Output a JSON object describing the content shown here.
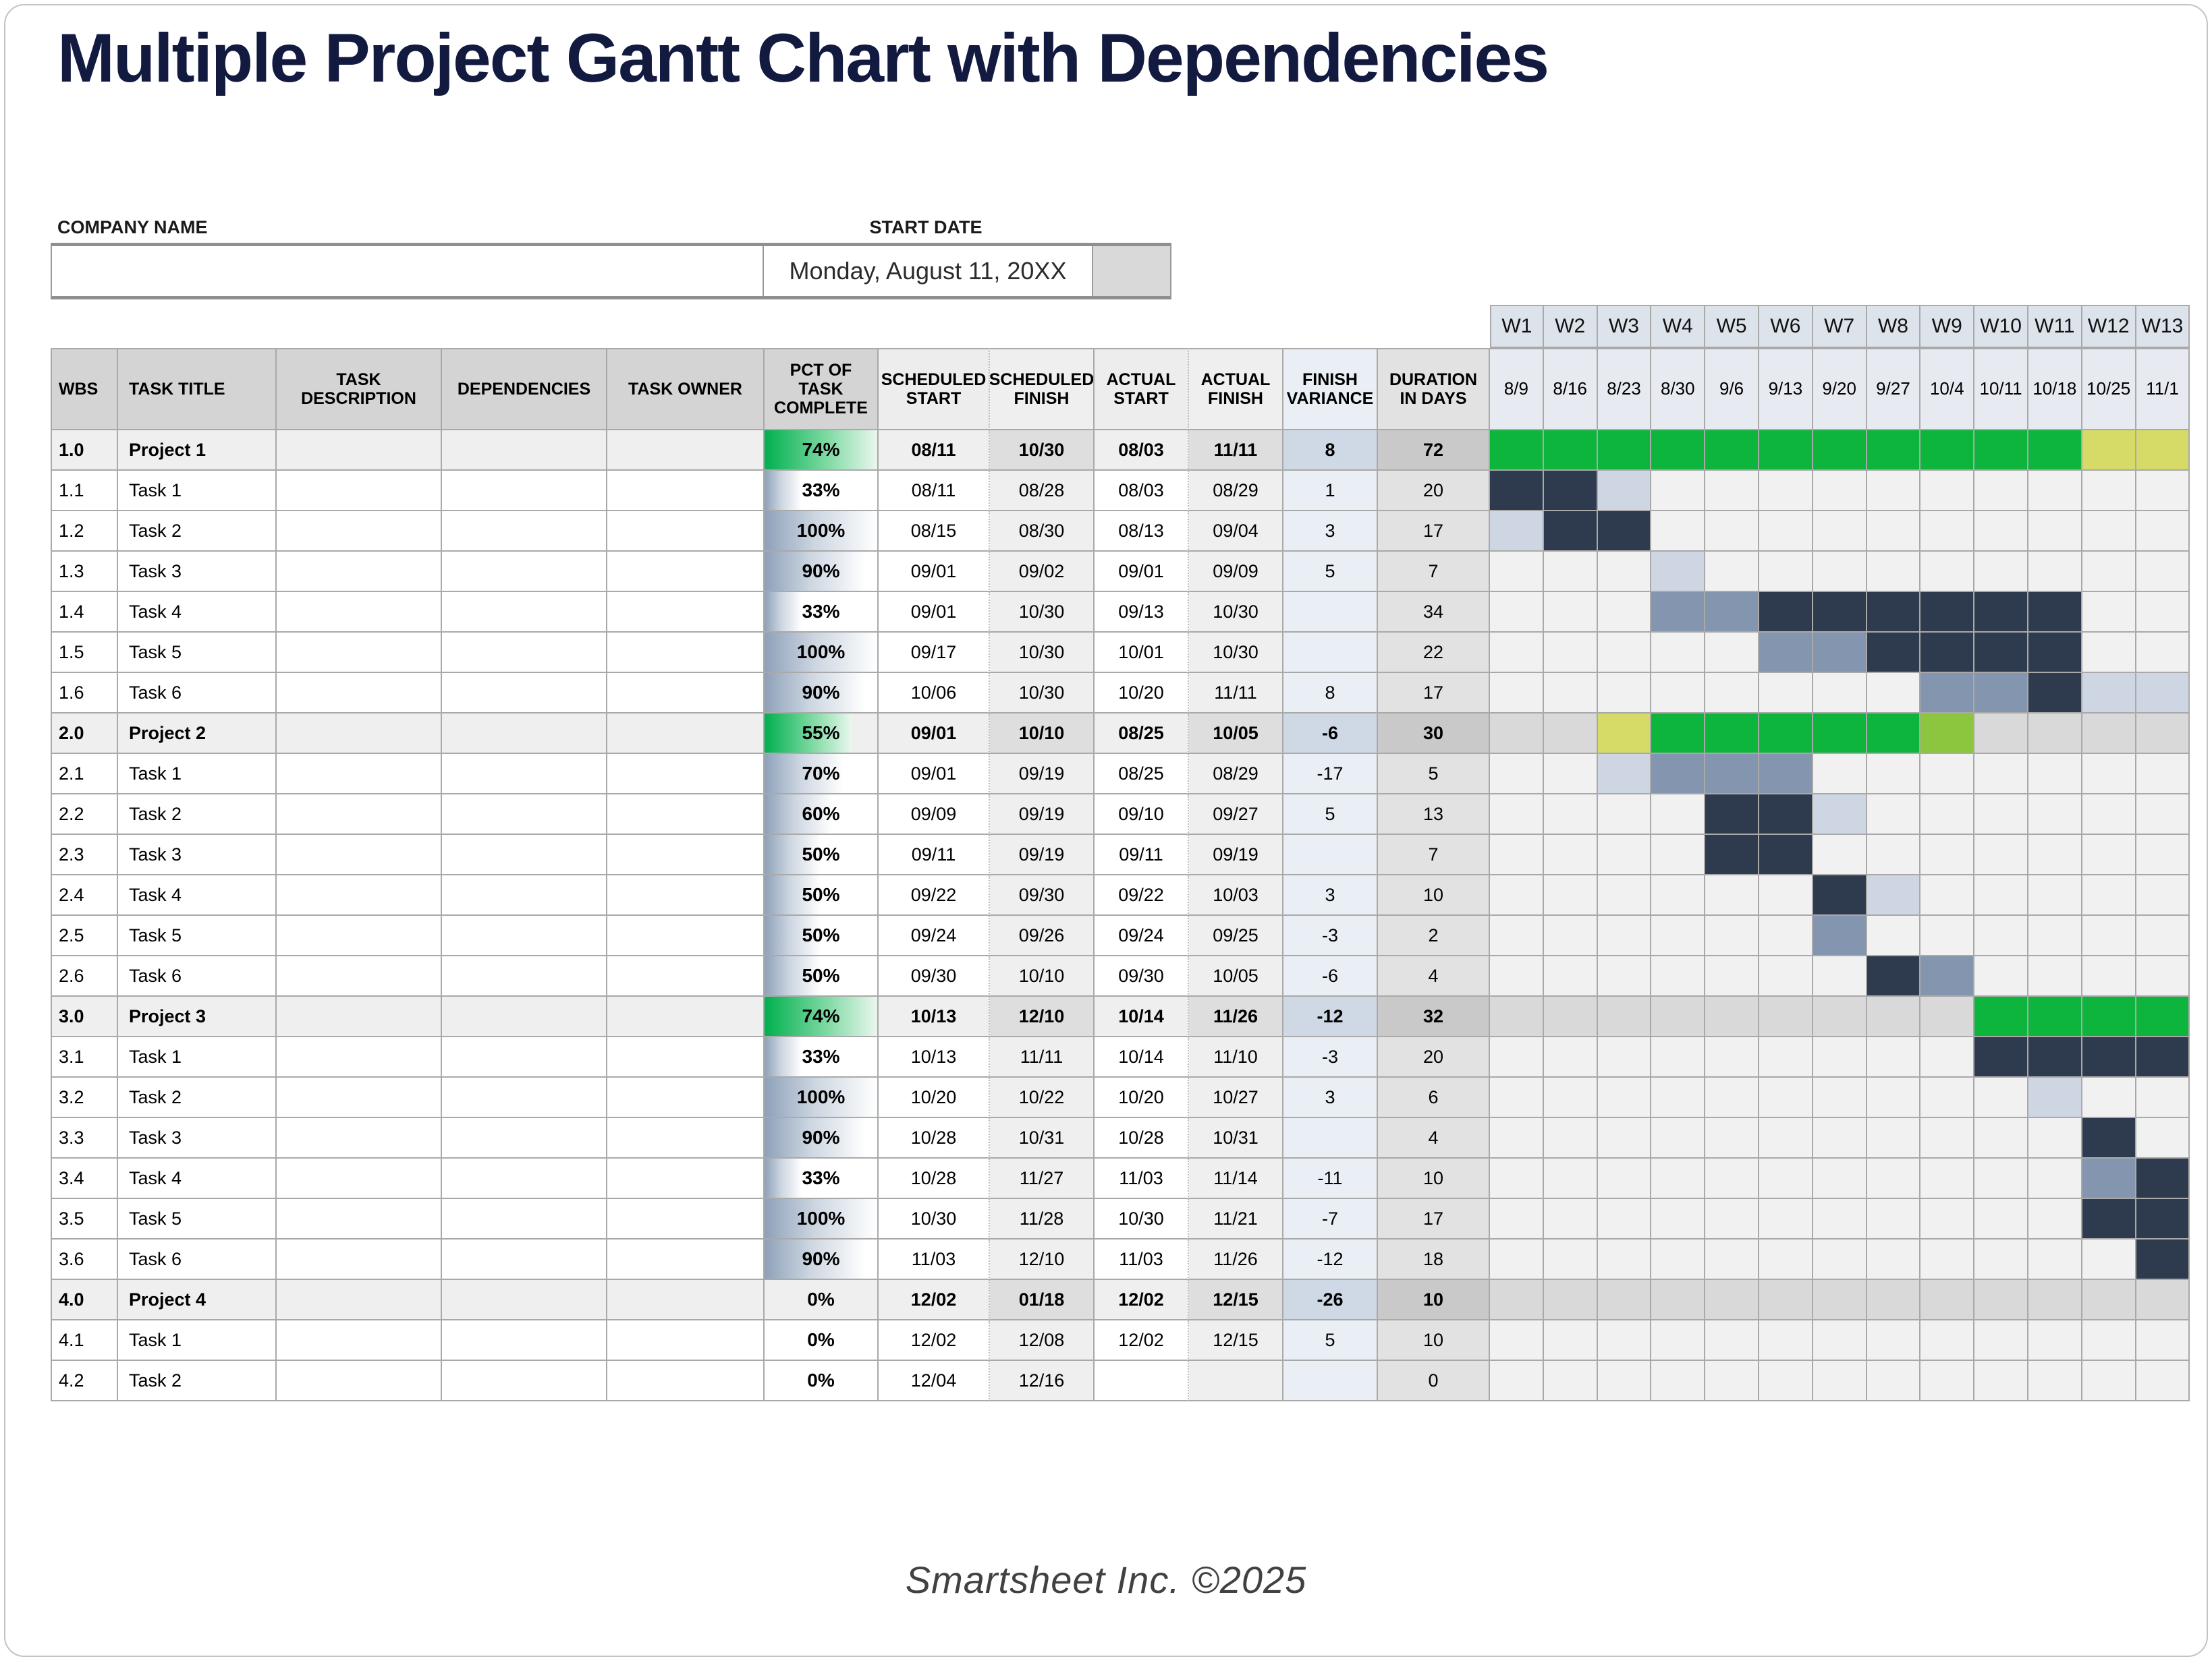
{
  "header": {
    "title": "Multiple Project Gantt Chart with Dependencies"
  },
  "form": {
    "company_label": "COMPANY NAME",
    "company_value": "",
    "start_date_label": "START DATE",
    "start_date_value": "Monday, August 11, 20XX"
  },
  "chart_data": {
    "type": "gantt",
    "title": "Multiple Project Gantt Chart with Dependencies",
    "columns": [
      "WBS",
      "TASK TITLE",
      "TASK DESCRIPTION",
      "DEPENDENCIES",
      "TASK OWNER",
      "PCT OF TASK COMPLETE",
      "SCHEDULED START",
      "SCHEDULED FINISH",
      "ACTUAL START",
      "ACTUAL FINISH",
      "FINISH VARIANCE",
      "DURATION IN DAYS"
    ],
    "weeks": [
      "W1",
      "W2",
      "W3",
      "W4",
      "W5",
      "W6",
      "W7",
      "W8",
      "W9",
      "W10",
      "W11",
      "W12",
      "W13"
    ],
    "week_dates": [
      "8/9",
      "8/16",
      "8/23",
      "8/30",
      "9/6",
      "9/13",
      "9/20",
      "9/27",
      "10/4",
      "10/11",
      "10/18",
      "10/25",
      "11/1"
    ],
    "legend": {
      "G": "project-scheduled-green",
      "LG": "project-partial-lightgreen",
      "Y": "project-overrun-yellow",
      "D": "task-actual-dark",
      "M": "task-mid-blue",
      "L": "task-light-blue",
      "X": "project-row-gray",
      "": "empty"
    },
    "rows": [
      {
        "wbs": "1.0",
        "title": "Project 1",
        "type": "project",
        "description": "",
        "dependencies": "",
        "owner": "",
        "pct": 74,
        "pct_label": "74%",
        "sched_start": "08/11",
        "sched_finish": "10/30",
        "actual_start": "08/03",
        "actual_finish": "11/11",
        "variance": "8",
        "duration": "72",
        "gantt": [
          "G",
          "G",
          "G",
          "G",
          "G",
          "G",
          "G",
          "G",
          "G",
          "G",
          "G",
          "Y",
          "Y"
        ]
      },
      {
        "wbs": "1.1",
        "title": "Task 1",
        "type": "task",
        "description": "",
        "dependencies": "",
        "owner": "",
        "pct": 33,
        "pct_label": "33%",
        "sched_start": "08/11",
        "sched_finish": "08/28",
        "actual_start": "08/03",
        "actual_finish": "08/29",
        "variance": "1",
        "duration": "20",
        "gantt": [
          "D",
          "D",
          "L",
          "",
          "",
          "",
          "",
          "",
          "",
          "",
          "",
          "",
          ""
        ]
      },
      {
        "wbs": "1.2",
        "title": "Task 2",
        "type": "task",
        "description": "",
        "dependencies": "",
        "owner": "",
        "pct": 100,
        "pct_label": "100%",
        "sched_start": "08/15",
        "sched_finish": "08/30",
        "actual_start": "08/13",
        "actual_finish": "09/04",
        "variance": "3",
        "duration": "17",
        "gantt": [
          "L",
          "D",
          "D",
          "",
          "",
          "",
          "",
          "",
          "",
          "",
          "",
          "",
          ""
        ]
      },
      {
        "wbs": "1.3",
        "title": "Task 3",
        "type": "task",
        "description": "",
        "dependencies": "",
        "owner": "",
        "pct": 90,
        "pct_label": "90%",
        "sched_start": "09/01",
        "sched_finish": "09/02",
        "actual_start": "09/01",
        "actual_finish": "09/09",
        "variance": "5",
        "duration": "7",
        "gantt": [
          "",
          "",
          "",
          "L",
          "",
          "",
          "",
          "",
          "",
          "",
          "",
          "",
          ""
        ]
      },
      {
        "wbs": "1.4",
        "title": "Task 4",
        "type": "task",
        "description": "",
        "dependencies": "",
        "owner": "",
        "pct": 33,
        "pct_label": "33%",
        "sched_start": "09/01",
        "sched_finish": "10/30",
        "actual_start": "09/13",
        "actual_finish": "10/30",
        "variance": "",
        "duration": "34",
        "gantt": [
          "",
          "",
          "",
          "M",
          "M",
          "D",
          "D",
          "D",
          "D",
          "D",
          "D",
          "",
          ""
        ]
      },
      {
        "wbs": "1.5",
        "title": "Task 5",
        "type": "task",
        "description": "",
        "dependencies": "",
        "owner": "",
        "pct": 100,
        "pct_label": "100%",
        "sched_start": "09/17",
        "sched_finish": "10/30",
        "actual_start": "10/01",
        "actual_finish": "10/30",
        "variance": "",
        "duration": "22",
        "gantt": [
          "",
          "",
          "",
          "",
          "",
          "M",
          "M",
          "D",
          "D",
          "D",
          "D",
          "",
          ""
        ]
      },
      {
        "wbs": "1.6",
        "title": "Task 6",
        "type": "task",
        "description": "",
        "dependencies": "",
        "owner": "",
        "pct": 90,
        "pct_label": "90%",
        "sched_start": "10/06",
        "sched_finish": "10/30",
        "actual_start": "10/20",
        "actual_finish": "11/11",
        "variance": "8",
        "duration": "17",
        "gantt": [
          "",
          "",
          "",
          "",
          "",
          "",
          "",
          "",
          "M",
          "M",
          "D",
          "L",
          "L"
        ]
      },
      {
        "wbs": "2.0",
        "title": "Project 2",
        "type": "project",
        "description": "",
        "dependencies": "",
        "owner": "",
        "pct": 55,
        "pct_label": "55%",
        "sched_start": "09/01",
        "sched_finish": "10/10",
        "actual_start": "08/25",
        "actual_finish": "10/05",
        "variance": "-6",
        "duration": "30",
        "gantt": [
          "X",
          "X",
          "Y",
          "G",
          "G",
          "G",
          "G",
          "G",
          "LG",
          "X",
          "X",
          "X",
          "X"
        ]
      },
      {
        "wbs": "2.1",
        "title": "Task 1",
        "type": "task",
        "description": "",
        "dependencies": "",
        "owner": "",
        "pct": 70,
        "pct_label": "70%",
        "sched_start": "09/01",
        "sched_finish": "09/19",
        "actual_start": "08/25",
        "actual_finish": "08/29",
        "variance": "-17",
        "duration": "5",
        "gantt": [
          "",
          "",
          "L",
          "M",
          "M",
          "M",
          "",
          "",
          "",
          "",
          "",
          "",
          ""
        ]
      },
      {
        "wbs": "2.2",
        "title": "Task 2",
        "type": "task",
        "description": "",
        "dependencies": "",
        "owner": "",
        "pct": 60,
        "pct_label": "60%",
        "sched_start": "09/09",
        "sched_finish": "09/19",
        "actual_start": "09/10",
        "actual_finish": "09/27",
        "variance": "5",
        "duration": "13",
        "gantt": [
          "",
          "",
          "",
          "",
          "D",
          "D",
          "L",
          "",
          "",
          "",
          "",
          "",
          ""
        ]
      },
      {
        "wbs": "2.3",
        "title": "Task 3",
        "type": "task",
        "description": "",
        "dependencies": "",
        "owner": "",
        "pct": 50,
        "pct_label": "50%",
        "sched_start": "09/11",
        "sched_finish": "09/19",
        "actual_start": "09/11",
        "actual_finish": "09/19",
        "variance": "",
        "duration": "7",
        "gantt": [
          "",
          "",
          "",
          "",
          "D",
          "D",
          "",
          "",
          "",
          "",
          "",
          "",
          ""
        ]
      },
      {
        "wbs": "2.4",
        "title": "Task 4",
        "type": "task",
        "description": "",
        "dependencies": "",
        "owner": "",
        "pct": 50,
        "pct_label": "50%",
        "sched_start": "09/22",
        "sched_finish": "09/30",
        "actual_start": "09/22",
        "actual_finish": "10/03",
        "variance": "3",
        "duration": "10",
        "gantt": [
          "",
          "",
          "",
          "",
          "",
          "",
          "D",
          "L",
          "",
          "",
          "",
          "",
          ""
        ]
      },
      {
        "wbs": "2.5",
        "title": "Task 5",
        "type": "task",
        "description": "",
        "dependencies": "",
        "owner": "",
        "pct": 50,
        "pct_label": "50%",
        "sched_start": "09/24",
        "sched_finish": "09/26",
        "actual_start": "09/24",
        "actual_finish": "09/25",
        "variance": "-3",
        "duration": "2",
        "gantt": [
          "",
          "",
          "",
          "",
          "",
          "",
          "M",
          "",
          "",
          "",
          "",
          "",
          ""
        ]
      },
      {
        "wbs": "2.6",
        "title": "Task 6",
        "type": "task",
        "description": "",
        "dependencies": "",
        "owner": "",
        "pct": 50,
        "pct_label": "50%",
        "sched_start": "09/30",
        "sched_finish": "10/10",
        "actual_start": "09/30",
        "actual_finish": "10/05",
        "variance": "-6",
        "duration": "4",
        "gantt": [
          "",
          "",
          "",
          "",
          "",
          "",
          "",
          "D",
          "M",
          "",
          "",
          "",
          ""
        ]
      },
      {
        "wbs": "3.0",
        "title": "Project 3",
        "type": "project",
        "description": "",
        "dependencies": "",
        "owner": "",
        "pct": 74,
        "pct_label": "74%",
        "sched_start": "10/13",
        "sched_finish": "12/10",
        "actual_start": "10/14",
        "actual_finish": "11/26",
        "variance": "-12",
        "duration": "32",
        "gantt": [
          "X",
          "X",
          "X",
          "X",
          "X",
          "X",
          "X",
          "X",
          "X",
          "G",
          "G",
          "G",
          "G"
        ]
      },
      {
        "wbs": "3.1",
        "title": "Task 1",
        "type": "task",
        "description": "",
        "dependencies": "",
        "owner": "",
        "pct": 33,
        "pct_label": "33%",
        "sched_start": "10/13",
        "sched_finish": "11/11",
        "actual_start": "10/14",
        "actual_finish": "11/10",
        "variance": "-3",
        "duration": "20",
        "gantt": [
          "",
          "",
          "",
          "",
          "",
          "",
          "",
          "",
          "",
          "D",
          "D",
          "D",
          "D"
        ]
      },
      {
        "wbs": "3.2",
        "title": "Task 2",
        "type": "task",
        "description": "",
        "dependencies": "",
        "owner": "",
        "pct": 100,
        "pct_label": "100%",
        "sched_start": "10/20",
        "sched_finish": "10/22",
        "actual_start": "10/20",
        "actual_finish": "10/27",
        "variance": "3",
        "duration": "6",
        "gantt": [
          "",
          "",
          "",
          "",
          "",
          "",
          "",
          "",
          "",
          "",
          "L",
          "",
          ""
        ]
      },
      {
        "wbs": "3.3",
        "title": "Task 3",
        "type": "task",
        "description": "",
        "dependencies": "",
        "owner": "",
        "pct": 90,
        "pct_label": "90%",
        "sched_start": "10/28",
        "sched_finish": "10/31",
        "actual_start": "10/28",
        "actual_finish": "10/31",
        "variance": "",
        "duration": "4",
        "gantt": [
          "",
          "",
          "",
          "",
          "",
          "",
          "",
          "",
          "",
          "",
          "",
          "D",
          ""
        ]
      },
      {
        "wbs": "3.4",
        "title": "Task 4",
        "type": "task",
        "description": "",
        "dependencies": "",
        "owner": "",
        "pct": 33,
        "pct_label": "33%",
        "sched_start": "10/28",
        "sched_finish": "11/27",
        "actual_start": "11/03",
        "actual_finish": "11/14",
        "variance": "-11",
        "duration": "10",
        "gantt": [
          "",
          "",
          "",
          "",
          "",
          "",
          "",
          "",
          "",
          "",
          "",
          "M",
          "D"
        ]
      },
      {
        "wbs": "3.5",
        "title": "Task 5",
        "type": "task",
        "description": "",
        "dependencies": "",
        "owner": "",
        "pct": 100,
        "pct_label": "100%",
        "sched_start": "10/30",
        "sched_finish": "11/28",
        "actual_start": "10/30",
        "actual_finish": "11/21",
        "variance": "-7",
        "duration": "17",
        "gantt": [
          "",
          "",
          "",
          "",
          "",
          "",
          "",
          "",
          "",
          "",
          "",
          "D",
          "D"
        ]
      },
      {
        "wbs": "3.6",
        "title": "Task 6",
        "type": "task",
        "description": "",
        "dependencies": "",
        "owner": "",
        "pct": 90,
        "pct_label": "90%",
        "sched_start": "11/03",
        "sched_finish": "12/10",
        "actual_start": "11/03",
        "actual_finish": "11/26",
        "variance": "-12",
        "duration": "18",
        "gantt": [
          "",
          "",
          "",
          "",
          "",
          "",
          "",
          "",
          "",
          "",
          "",
          "",
          "D"
        ]
      },
      {
        "wbs": "4.0",
        "title": "Project 4",
        "type": "project",
        "description": "",
        "dependencies": "",
        "owner": "",
        "pct": 0,
        "pct_label": "0%",
        "sched_start": "12/02",
        "sched_finish": "01/18",
        "actual_start": "12/02",
        "actual_finish": "12/15",
        "variance": "-26",
        "duration": "10",
        "gantt": [
          "X",
          "X",
          "X",
          "X",
          "X",
          "X",
          "X",
          "X",
          "X",
          "X",
          "X",
          "X",
          "X"
        ]
      },
      {
        "wbs": "4.1",
        "title": "Task 1",
        "type": "task",
        "description": "",
        "dependencies": "",
        "owner": "",
        "pct": 0,
        "pct_label": "0%",
        "sched_start": "12/02",
        "sched_finish": "12/08",
        "actual_start": "12/02",
        "actual_finish": "12/15",
        "variance": "5",
        "duration": "10",
        "gantt": [
          "",
          "",
          "",
          "",
          "",
          "",
          "",
          "",
          "",
          "",
          "",
          "",
          ""
        ]
      },
      {
        "wbs": "4.2",
        "title": "Task 2",
        "type": "task",
        "description": "",
        "dependencies": "",
        "owner": "",
        "pct": 0,
        "pct_label": "0%",
        "sched_start": "12/04",
        "sched_finish": "12/16",
        "actual_start": "",
        "actual_finish": "",
        "variance": "",
        "duration": "0",
        "gantt": [
          "",
          "",
          "",
          "",
          "",
          "",
          "",
          "",
          "",
          "",
          "",
          "",
          ""
        ]
      }
    ]
  },
  "colors": {
    "G": "#0db53c",
    "LG": "#8cc63e",
    "Y": "#d5db66",
    "D": "#2e3a4e",
    "M": "#8496af",
    "L": "#cdd6e2",
    "X": "#d9d9d9",
    "title_navy": "#131A40",
    "grid_border": "#a9a9a9",
    "project_green_bar": "#00b04f",
    "task_bar_blue": "#8ea1b9"
  },
  "footer": {
    "credit": "Smartsheet Inc. ©2025"
  }
}
